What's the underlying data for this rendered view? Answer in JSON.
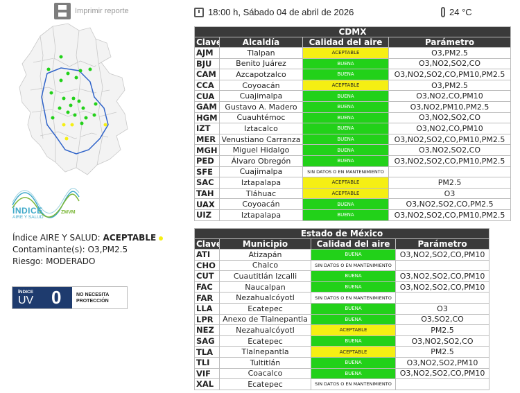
{
  "header": {
    "print_label": "Imprimir reporte",
    "datetime": "18:00 h, Sábado 04 de abril de 2026",
    "temperature": "24 °C"
  },
  "cdmx": {
    "title": "CDMX",
    "headers": [
      "Clave",
      "Alcaldía",
      "Calidad del aire",
      "Parámetro"
    ],
    "rows": [
      {
        "clave": "AJM",
        "name": "Tlalpan",
        "calidad": "ACEPTABLE",
        "param": "O3,PM2.5"
      },
      {
        "clave": "BJU",
        "name": "Benito Juárez",
        "calidad": "BUENA",
        "param": "O3,NO2,SO2,CO"
      },
      {
        "clave": "CAM",
        "name": "Azcapotzalco",
        "calidad": "BUENA",
        "param": "O3,NO2,SO2,CO,PM10,PM2.5"
      },
      {
        "clave": "CCA",
        "name": "Coyoacán",
        "calidad": "ACEPTABLE",
        "param": "O3,PM2.5"
      },
      {
        "clave": "CUA",
        "name": "Cuajimalpa",
        "calidad": "BUENA",
        "param": "O3,NO2,CO,PM10"
      },
      {
        "clave": "GAM",
        "name": "Gustavo A. Madero",
        "calidad": "BUENA",
        "param": "O3,NO2,PM10,PM2.5"
      },
      {
        "clave": "HGM",
        "name": "Cuauhtémoc",
        "calidad": "BUENA",
        "param": "O3,NO2,SO2,CO"
      },
      {
        "clave": "IZT",
        "name": "Iztacalco",
        "calidad": "BUENA",
        "param": "O3,NO2,CO,PM10"
      },
      {
        "clave": "MER",
        "name": "Venustiano Carranza",
        "calidad": "BUENA",
        "param": "O3,NO2,SO2,CO,PM10,PM2.5"
      },
      {
        "clave": "MGH",
        "name": "Miguel Hidalgo",
        "calidad": "BUENA",
        "param": "O3,NO2,SO2,CO"
      },
      {
        "clave": "PED",
        "name": "Álvaro Obregón",
        "calidad": "BUENA",
        "param": "O3,NO2,SO2,CO,PM10,PM2.5"
      },
      {
        "clave": "SFE",
        "name": "Cuajimalpa",
        "calidad": "SIN DATOS O EN MANTENIMIENTO",
        "param": ""
      },
      {
        "clave": "SAC",
        "name": "Iztapalapa",
        "calidad": "ACEPTABLE",
        "param": "PM2.5"
      },
      {
        "clave": "TAH",
        "name": "Tláhuac",
        "calidad": "ACEPTABLE",
        "param": "O3"
      },
      {
        "clave": "UAX",
        "name": "Coyoacán",
        "calidad": "BUENA",
        "param": "O3,NO2,SO2,CO,PM2.5"
      },
      {
        "clave": "UIZ",
        "name": "Iztapalapa",
        "calidad": "BUENA",
        "param": "O3,NO2,SO2,CO,PM10,PM2.5"
      }
    ]
  },
  "edomex": {
    "title": "Estado de México",
    "headers": [
      "Clave",
      "Municipio",
      "Calidad del aire",
      "Parámetro"
    ],
    "rows": [
      {
        "clave": "ATI",
        "name": "Atizapán",
        "calidad": "BUENA",
        "param": "O3,NO2,SO2,CO,PM10"
      },
      {
        "clave": "CHO",
        "name": "Chalco",
        "calidad": "SIN DATOS O EN MANTENIMIENTO",
        "param": ""
      },
      {
        "clave": "CUT",
        "name": "Cuautitlán Izcalli",
        "calidad": "BUENA",
        "param": "O3,NO2,SO2,CO,PM10"
      },
      {
        "clave": "FAC",
        "name": "Naucalpan",
        "calidad": "BUENA",
        "param": "O3,NO2,SO2,CO,PM10"
      },
      {
        "clave": "FAR",
        "name": "Nezahualcóyotl",
        "calidad": "SIN DATOS O EN MANTENIMIENTO",
        "param": ""
      },
      {
        "clave": "LLA",
        "name": "Ecatepec",
        "calidad": "BUENA",
        "param": "O3"
      },
      {
        "clave": "LPR",
        "name": "Anexo de Tlalnepantla",
        "calidad": "BUENA",
        "param": "O3,SO2,CO"
      },
      {
        "clave": "NEZ",
        "name": "Nezahualcóyotl",
        "calidad": "ACEPTABLE",
        "param": "PM2.5"
      },
      {
        "clave": "SAG",
        "name": "Ecatepec",
        "calidad": "BUENA",
        "param": "O3,NO2,SO2,CO"
      },
      {
        "clave": "TLA",
        "name": "Tlalnepantla",
        "calidad": "ACEPTABLE",
        "param": "PM2.5"
      },
      {
        "clave": "TLI",
        "name": "Tultitlán",
        "calidad": "BUENA",
        "param": "O3,NO2,SO2,PM10"
      },
      {
        "clave": "VIF",
        "name": "Coacalco",
        "calidad": "BUENA",
        "param": "O3,NO2,SO2,CO,PM10"
      },
      {
        "clave": "XAL",
        "name": "Ecatepec",
        "calidad": "SIN DATOS O EN MANTENIMIENTO",
        "param": ""
      }
    ]
  },
  "summary": {
    "label": "Índice AIRE Y SALUD: ",
    "value": "ACEPTABLE",
    "contaminantes_label": "Contaminante(s): ",
    "contaminantes_value": "O3,PM2.5",
    "riesgo": "Riesgo: MODERADO"
  },
  "logo": {
    "title": "ÍNDICE",
    "subtitle": "AIRE Y SALUD",
    "zmvm": "ZMVM"
  },
  "uv": {
    "indice": "ÍNDICE",
    "uv": "UV",
    "value": "0",
    "message_line1": "NO NECESITA",
    "message_line2": "PROTECCIÓN"
  },
  "colors": {
    "buena": "#22d119",
    "aceptable": "#f5ef13",
    "header_bg": "#3a3a3a",
    "uv_bg": "#1e3b6e"
  }
}
